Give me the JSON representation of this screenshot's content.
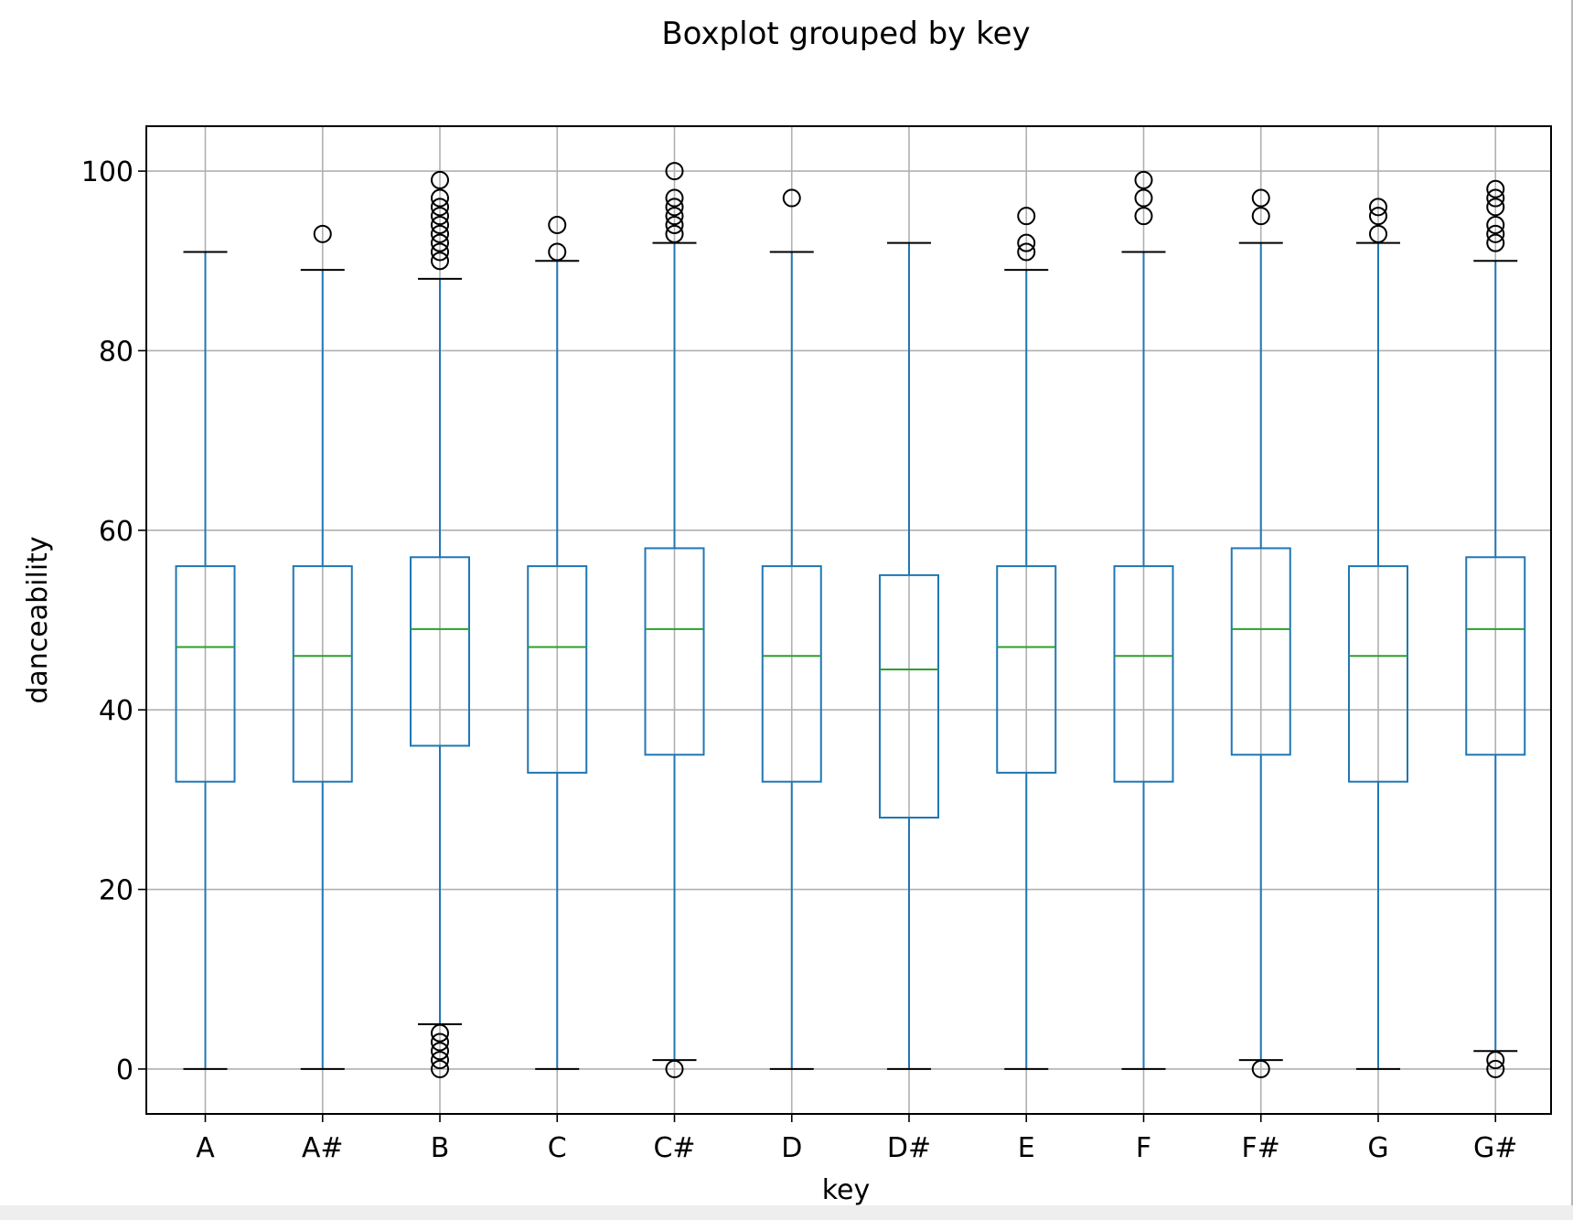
{
  "chart_data": {
    "type": "boxplot",
    "title": "Boxplot grouped by key",
    "xlabel": "key",
    "ylabel": "danceability",
    "ylim": [
      -5,
      105
    ],
    "yticks": [
      0,
      20,
      40,
      60,
      80,
      100
    ],
    "grid": true,
    "colors": {
      "box": "#1f77b4",
      "median": "#2ca02c",
      "caps": "#000000",
      "outlier": "#000000",
      "grid": "#b0b0b0"
    },
    "categories": [
      "A",
      "A#",
      "B",
      "C",
      "C#",
      "D",
      "D#",
      "E",
      "F",
      "F#",
      "G",
      "G#"
    ],
    "boxes": [
      {
        "key": "A",
        "whisker_low": 0,
        "q1": 32,
        "median": 47,
        "q3": 56,
        "whisker_high": 91,
        "outliers": []
      },
      {
        "key": "A#",
        "whisker_low": 0,
        "q1": 32,
        "median": 46,
        "q3": 56,
        "whisker_high": 89,
        "outliers": [
          93
        ]
      },
      {
        "key": "B",
        "whisker_low": 5,
        "q1": 36,
        "median": 49,
        "q3": 57,
        "whisker_high": 88,
        "outliers": [
          0,
          1,
          2,
          3,
          4,
          90,
          91,
          92,
          93,
          94,
          95,
          96,
          97,
          99
        ]
      },
      {
        "key": "C",
        "whisker_low": 0,
        "q1": 33,
        "median": 47,
        "q3": 56,
        "whisker_high": 90,
        "outliers": [
          91,
          94
        ]
      },
      {
        "key": "C#",
        "whisker_low": 1,
        "q1": 35,
        "median": 49,
        "q3": 58,
        "whisker_high": 92,
        "outliers": [
          0,
          93,
          94,
          95,
          96,
          97,
          100
        ]
      },
      {
        "key": "D",
        "whisker_low": 0,
        "q1": 32,
        "median": 46,
        "q3": 56,
        "whisker_high": 91,
        "outliers": [
          97
        ]
      },
      {
        "key": "D#",
        "whisker_low": 0,
        "q1": 28,
        "median": 44.5,
        "q3": 55,
        "whisker_high": 92,
        "outliers": []
      },
      {
        "key": "E",
        "whisker_low": 0,
        "q1": 33,
        "median": 47,
        "q3": 56,
        "whisker_high": 89,
        "outliers": [
          91,
          92,
          95
        ]
      },
      {
        "key": "F",
        "whisker_low": 0,
        "q1": 32,
        "median": 46,
        "q3": 56,
        "whisker_high": 91,
        "outliers": [
          95,
          97,
          99
        ]
      },
      {
        "key": "F#",
        "whisker_low": 1,
        "q1": 35,
        "median": 49,
        "q3": 58,
        "whisker_high": 92,
        "outliers": [
          0,
          95,
          97
        ]
      },
      {
        "key": "G",
        "whisker_low": 0,
        "q1": 32,
        "median": 46,
        "q3": 56,
        "whisker_high": 92,
        "outliers": [
          93,
          95,
          96
        ]
      },
      {
        "key": "G#",
        "whisker_low": 2,
        "q1": 35,
        "median": 49,
        "q3": 57,
        "whisker_high": 90,
        "outliers": [
          0,
          1,
          92,
          93,
          94,
          96,
          97,
          98
        ]
      }
    ]
  }
}
